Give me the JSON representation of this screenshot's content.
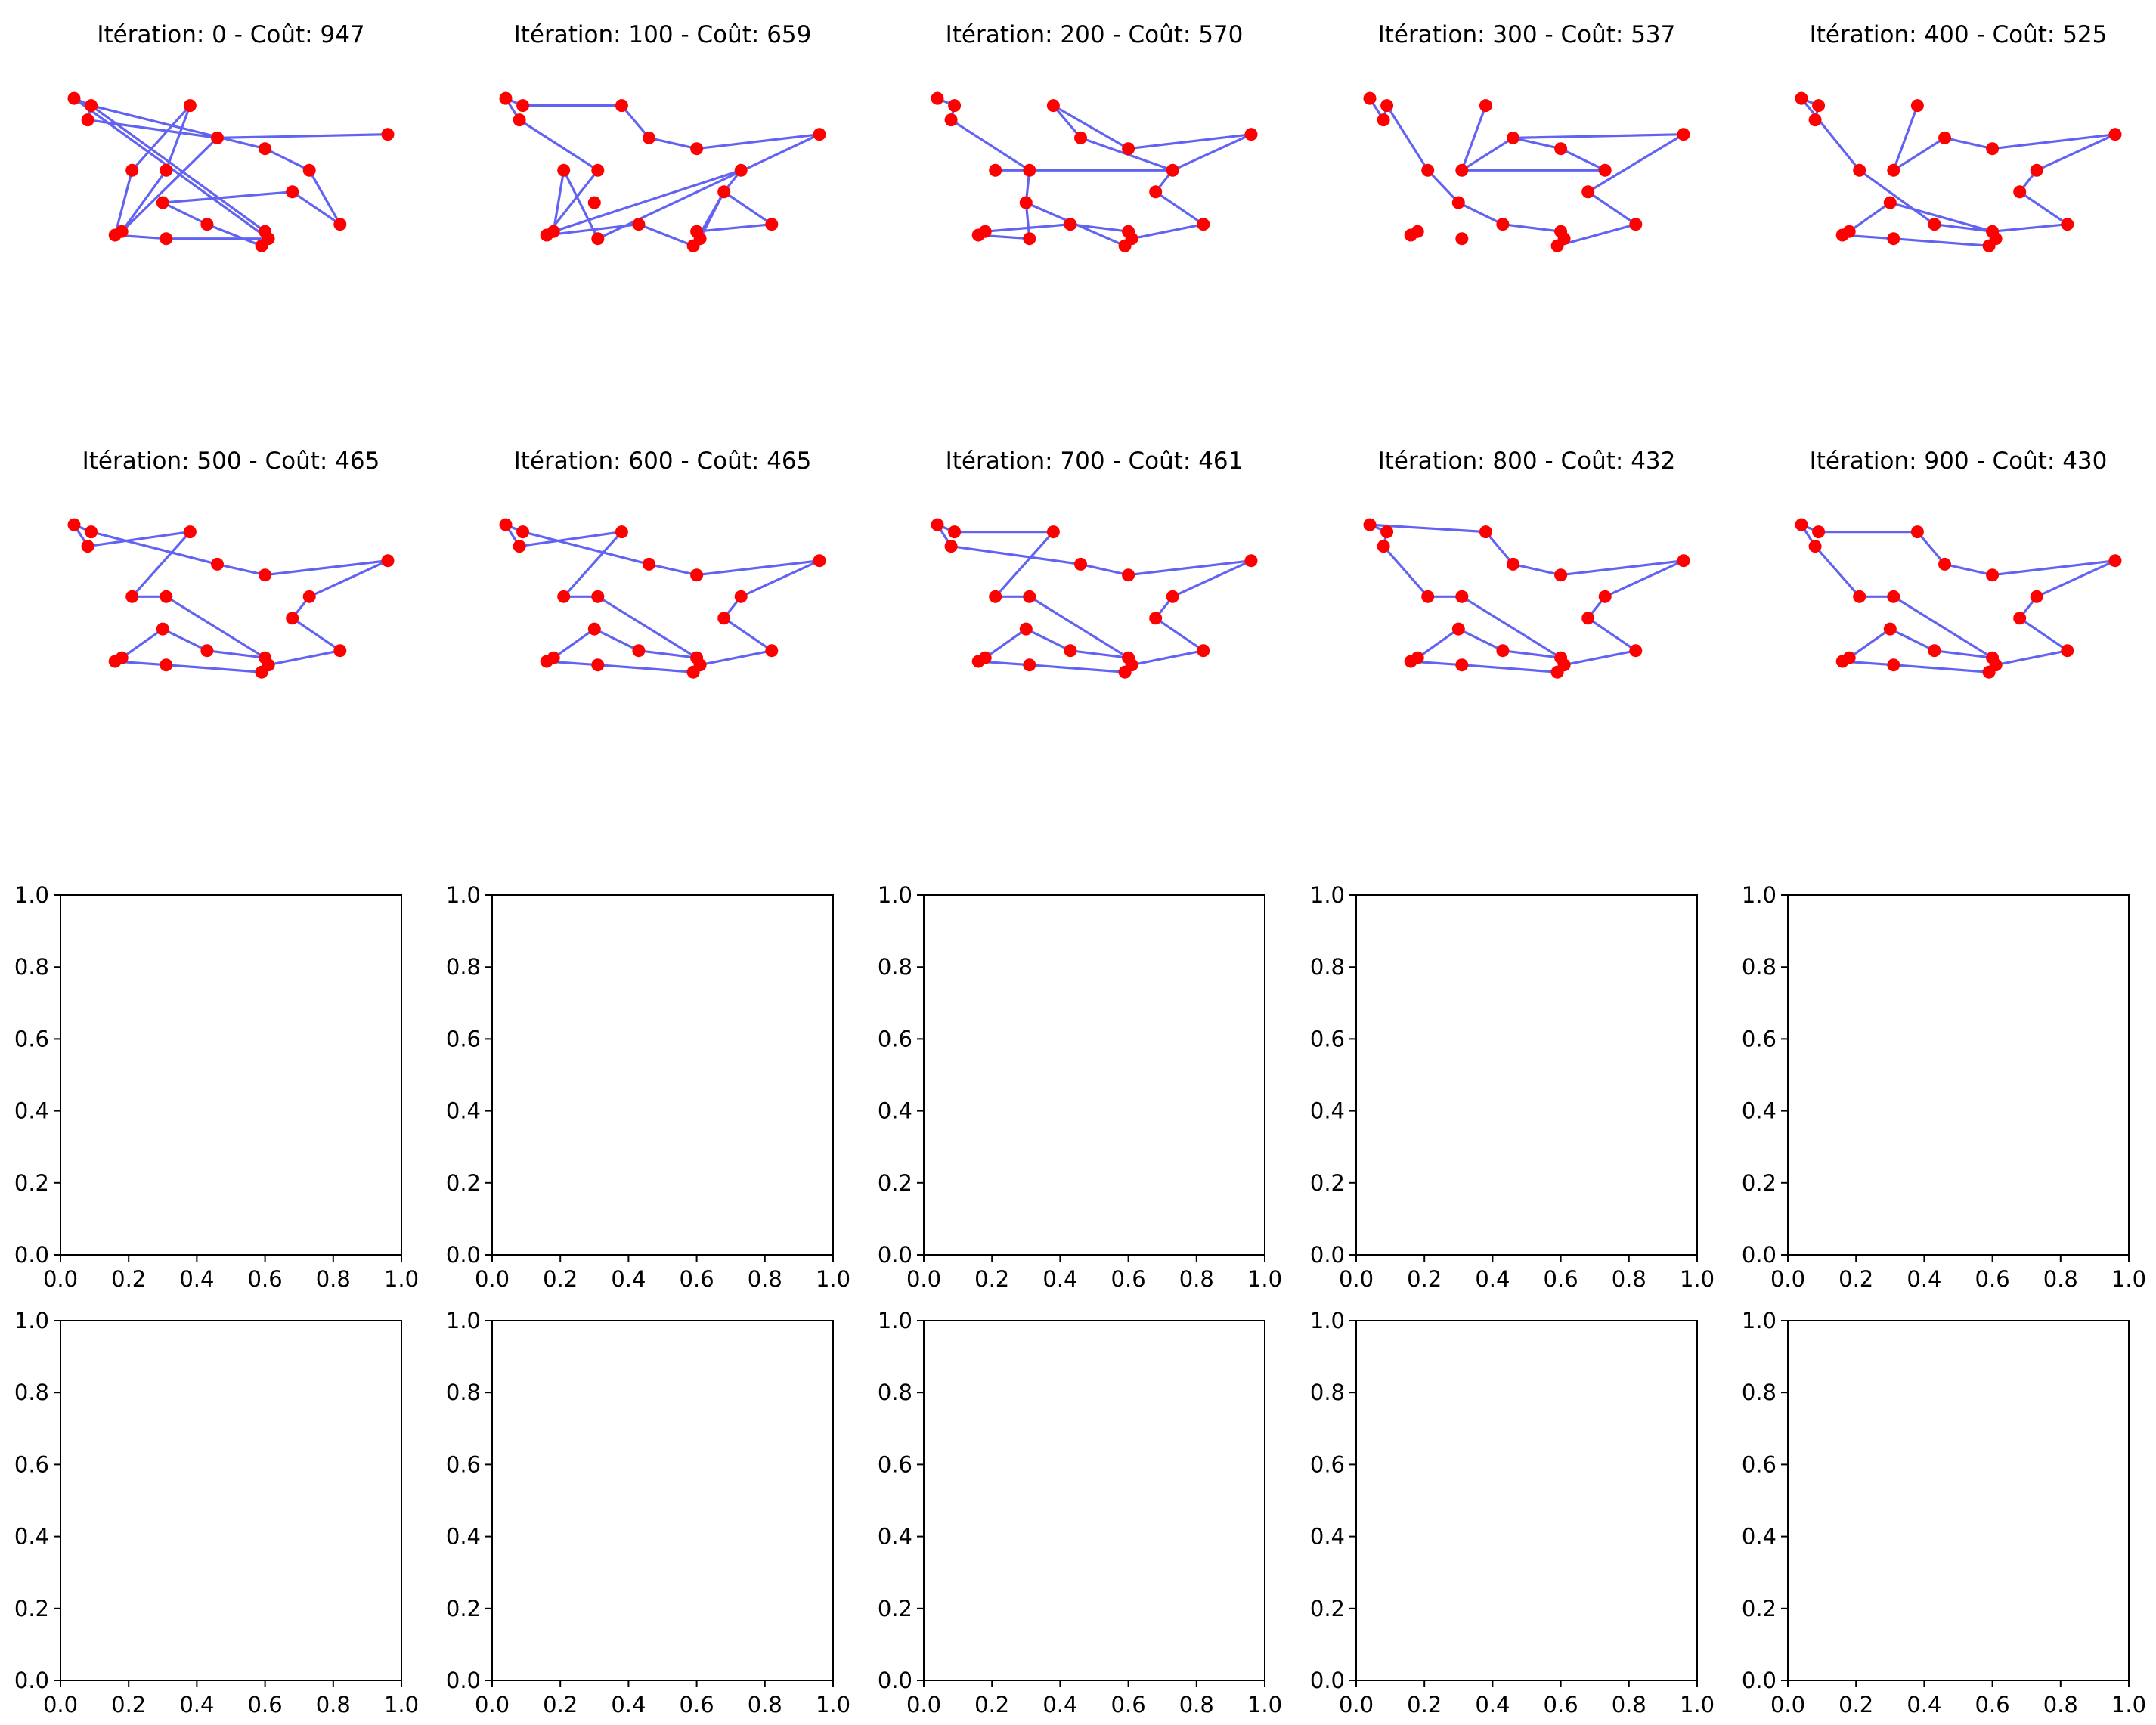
{
  "figure": {
    "route_color": "#5b5bf0",
    "city_color": "#ff0000"
  },
  "chart_data": {
    "type": "scatter",
    "cities": [
      {
        "x": 0.04,
        "y": 0.92
      },
      {
        "x": 0.09,
        "y": 0.9
      },
      {
        "x": 0.08,
        "y": 0.86
      },
      {
        "x": 0.38,
        "y": 0.9
      },
      {
        "x": 0.46,
        "y": 0.81
      },
      {
        "x": 0.6,
        "y": 0.78
      },
      {
        "x": 0.96,
        "y": 0.82
      },
      {
        "x": 0.73,
        "y": 0.72
      },
      {
        "x": 0.68,
        "y": 0.66
      },
      {
        "x": 0.82,
        "y": 0.57
      },
      {
        "x": 0.6,
        "y": 0.55
      },
      {
        "x": 0.61,
        "y": 0.53
      },
      {
        "x": 0.59,
        "y": 0.51
      },
      {
        "x": 0.43,
        "y": 0.57
      },
      {
        "x": 0.3,
        "y": 0.63
      },
      {
        "x": 0.18,
        "y": 0.55
      },
      {
        "x": 0.16,
        "y": 0.54
      },
      {
        "x": 0.31,
        "y": 0.53
      },
      {
        "x": 0.21,
        "y": 0.72
      },
      {
        "x": 0.31,
        "y": 0.72
      }
    ],
    "xlim": [
      0,
      1
    ],
    "ylim": [
      0,
      1
    ],
    "panels": [
      {
        "title": "Itération: 0 - Coût: 947",
        "route": [
          0,
          1,
          5,
          7,
          9,
          8,
          14,
          13,
          12,
          11,
          10,
          1,
          2,
          4,
          6,
          4,
          15,
          19,
          3,
          18,
          16,
          17,
          11,
          0
        ]
      },
      {
        "title": "Itération: 100 - Coût: 659",
        "route": [
          0,
          1,
          3,
          4,
          5,
          6,
          17,
          18,
          15,
          7,
          8,
          9,
          10,
          11,
          8,
          12,
          13,
          16,
          19,
          2,
          0
        ]
      },
      {
        "title": "Itération: 200 - Coût: 570",
        "route": [
          0,
          1,
          2,
          19,
          18,
          19,
          14,
          12,
          14,
          17,
          16,
          15,
          13,
          10,
          11,
          9,
          8,
          7,
          4,
          3,
          5,
          6,
          7,
          19
        ]
      },
      {
        "title": "Itération: 300 - Coût: 537",
        "route": [
          0,
          2,
          1,
          18,
          14,
          13,
          10,
          11,
          12,
          9,
          8,
          6,
          4,
          19,
          3,
          19,
          7,
          5,
          4
        ]
      },
      {
        "title": "Itération: 400 - Coût: 525",
        "route": [
          2,
          1,
          0,
          18,
          13,
          10,
          11,
          12,
          17,
          16,
          15,
          14,
          10,
          9,
          8,
          7,
          6,
          5,
          4,
          19,
          3,
          19
        ]
      },
      {
        "title": "Itération: 500 - Coût: 465",
        "route": [
          0,
          1,
          4,
          5,
          6,
          7,
          8,
          9,
          11,
          12,
          17,
          16,
          15,
          14,
          13,
          10,
          19,
          18,
          3,
          2,
          0
        ]
      },
      {
        "title": "Itération: 600 - Coût: 465",
        "route": [
          0,
          1,
          4,
          5,
          6,
          7,
          8,
          9,
          11,
          12,
          17,
          16,
          15,
          14,
          13,
          10,
          19,
          18,
          3,
          2,
          0
        ]
      },
      {
        "title": "Itération: 700 - Coût: 461",
        "route": [
          0,
          2,
          4,
          5,
          6,
          7,
          8,
          9,
          11,
          12,
          17,
          16,
          15,
          14,
          13,
          10,
          19,
          18,
          3,
          1,
          0
        ]
      },
      {
        "title": "Itération: 800 - Coût: 432",
        "route": [
          0,
          3,
          4,
          5,
          6,
          7,
          8,
          9,
          11,
          12,
          17,
          16,
          15,
          14,
          13,
          10,
          19,
          18,
          2,
          1,
          0
        ]
      },
      {
        "title": "Itération: 900 - Coût: 430",
        "route": [
          0,
          1,
          3,
          4,
          5,
          6,
          7,
          8,
          9,
          11,
          12,
          17,
          16,
          15,
          14,
          13,
          10,
          19,
          18,
          2,
          0
        ]
      }
    ],
    "empty_axes": {
      "count": 10,
      "xticks": [
        "0.0",
        "0.2",
        "0.4",
        "0.6",
        "0.8",
        "1.0"
      ],
      "yticks": [
        "0.0",
        "0.2",
        "0.4",
        "0.6",
        "0.8",
        "1.0"
      ],
      "xlim": [
        0,
        1
      ],
      "ylim": [
        0,
        1
      ]
    }
  }
}
